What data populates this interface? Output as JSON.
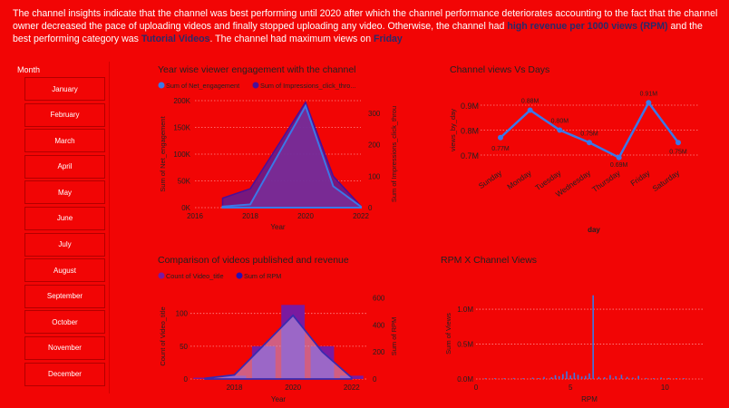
{
  "insight": {
    "part1": "The channel insights indicate that the channel was best performing until 2020 after which the channel performance deteriorates accounting to the fact that the channel owner decreased the pace of uploading videos and finally stopped uploading any video. Otherwise, the channel had ",
    "bold1": "high revenue per 1000 views (RPM)",
    "part2": " and the best performing category was ",
    "bold2": "Tutorial Videos",
    "part3": ". The channel had maximum views on ",
    "bold3": "Friday"
  },
  "slicer": {
    "title": "Month",
    "months": [
      "January",
      "February",
      "March",
      "April",
      "May",
      "June",
      "July",
      "August",
      "September",
      "October",
      "November",
      "December"
    ]
  },
  "colors": {
    "background": "#f20505",
    "line_blue": "#3a78e8",
    "purple_fill": "#6a1a8a",
    "dark_purple": "#4a0f9a",
    "bar_purple": "#7a1aa0",
    "text_dark": "#222222"
  },
  "chart_data": [
    {
      "id": "engagement",
      "type": "area",
      "title": "Year wise viewer engagement with the channel",
      "xlabel": "Year",
      "ylabel": "Sum of Net_engagement",
      "y2label": "Sum of Impressions_click_through_rate",
      "xticks": [
        "2016",
        "2018",
        "2020",
        "2022"
      ],
      "yticks": [
        "0K",
        "50K",
        "100K",
        "150K",
        "200K"
      ],
      "y2ticks": [
        "0",
        "100",
        "200",
        "300"
      ],
      "xlim": [
        2016,
        2022
      ],
      "ylim": [
        0,
        200000
      ],
      "y2lim": [
        0,
        340
      ],
      "legend": [
        "Sum of Net_engagement",
        "Sum of Impressions_click_through_rate"
      ],
      "series": [
        {
          "name": "Sum of Net_engagement",
          "x": [
            2017,
            2018,
            2020,
            2021,
            2022
          ],
          "values": [
            2000,
            6000,
            190000,
            40000,
            2000
          ]
        },
        {
          "name": "Sum of Impressions_click_through_rate",
          "x": [
            2017,
            2018,
            2020,
            2021,
            2022
          ],
          "values": [
            30,
            60,
            335,
            100,
            5
          ]
        }
      ]
    },
    {
      "id": "days",
      "type": "line",
      "title": "Channel views Vs Days",
      "xlabel": "day",
      "ylabel": "views_by_day",
      "categories": [
        "Sunday",
        "Monday",
        "Tuesday",
        "Wednesday",
        "Thursday",
        "Friday",
        "Saturday"
      ],
      "values": [
        0.77,
        0.88,
        0.8,
        0.75,
        0.69,
        0.91,
        0.75
      ],
      "labels": [
        "0.77M",
        "0.88M",
        "0.80M",
        "0.75M",
        "0.69M",
        "0.91M",
        "0.75M"
      ],
      "yticks": [
        "0.7M",
        "0.8M",
        "0.9M"
      ],
      "ylim": [
        0.66,
        0.94
      ]
    },
    {
      "id": "published",
      "type": "bar",
      "title": "Comparison of videos published and revenue",
      "xlabel": "Year",
      "ylabel": "Count of Video_title",
      "y2label": "Sum of RPM",
      "xticks": [
        "2018",
        "2020",
        "2022"
      ],
      "yticks": [
        "0",
        "50",
        "100"
      ],
      "y2ticks": [
        "0",
        "200",
        "400",
        "600"
      ],
      "xlim": [
        2016.5,
        2022.5
      ],
      "ylim": [
        0,
        130
      ],
      "y2lim": [
        0,
        630
      ],
      "legend": [
        "Count of Video_title",
        "Sum of RPM"
      ],
      "series": [
        {
          "name": "Count of Video_title",
          "x": [
            2017,
            2018,
            2019,
            2020,
            2021,
            2022
          ],
          "values": [
            2,
            5,
            50,
            113,
            50,
            5
          ]
        },
        {
          "name": "Sum of RPM",
          "x": [
            2017,
            2018,
            2019,
            2020,
            2021,
            2022
          ],
          "values": [
            5,
            30,
            250,
            470,
            200,
            10
          ]
        }
      ]
    },
    {
      "id": "rpm",
      "type": "bar",
      "title": "RPM X Channel Views",
      "xlabel": "RPM",
      "ylabel": "Sum of Views",
      "xticks": [
        "0",
        "5",
        "10"
      ],
      "yticks": [
        "0.0M",
        "0.5M",
        "1.0M"
      ],
      "xlim": [
        0,
        12
      ],
      "ylim": [
        0,
        1300000
      ],
      "values_sample": [
        [
          0.5,
          8000
        ],
        [
          1,
          12000
        ],
        [
          1.5,
          6000
        ],
        [
          2,
          15000
        ],
        [
          2.5,
          10000
        ],
        [
          3,
          20000
        ],
        [
          3.3,
          9000
        ],
        [
          3.6,
          30000
        ],
        [
          4,
          25000
        ],
        [
          4.2,
          55000
        ],
        [
          4.4,
          40000
        ],
        [
          4.6,
          70000
        ],
        [
          4.8,
          110000
        ],
        [
          5,
          50000
        ],
        [
          5.2,
          90000
        ],
        [
          5.4,
          60000
        ],
        [
          5.6,
          35000
        ],
        [
          5.8,
          45000
        ],
        [
          6.0,
          80000
        ],
        [
          6.2,
          1200000
        ],
        [
          6.5,
          30000
        ],
        [
          6.8,
          25000
        ],
        [
          7.1,
          55000
        ],
        [
          7.4,
          40000
        ],
        [
          7.7,
          60000
        ],
        [
          8,
          30000
        ],
        [
          8.3,
          20000
        ],
        [
          8.6,
          45000
        ],
        [
          9,
          15000
        ],
        [
          9.4,
          10000
        ],
        [
          9.8,
          20000
        ],
        [
          10.2,
          15000
        ],
        [
          10.6,
          8000
        ],
        [
          11,
          5000
        ]
      ]
    }
  ]
}
